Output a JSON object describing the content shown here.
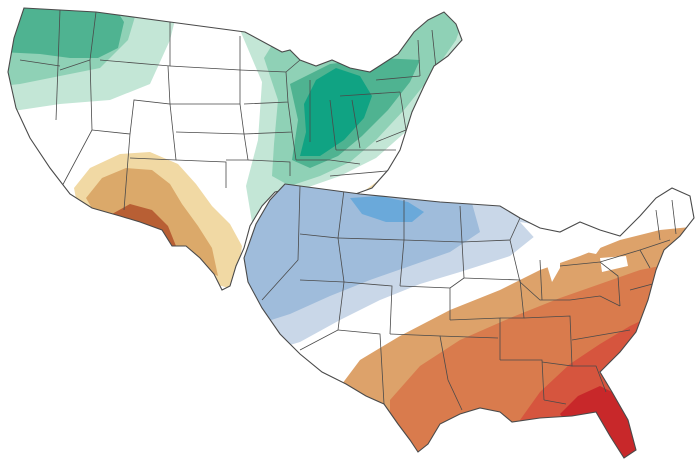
{
  "figure": {
    "maps": [
      {
        "id": "precipitation-outlook",
        "shaded_categories": [
          "above-normal-light",
          "above-normal-medium",
          "above-normal-strong",
          "below-normal-light",
          "below-normal-medium",
          "below-normal-strong"
        ]
      },
      {
        "id": "temperature-outlook",
        "shaded_categories": [
          "below-normal-light",
          "below-normal-medium",
          "below-normal-strong",
          "above-normal-light",
          "above-normal-medium",
          "above-normal-strong",
          "above-normal-extreme"
        ]
      }
    ],
    "colors": {
      "land": "#ffffff",
      "border": "#4a4a4a",
      "green_light": "#c3e6d6",
      "green_mid": "#8fd1b6",
      "green_strong": "#4fb391",
      "green_deep": "#10a383",
      "tan_light": "#f1d9a4",
      "tan_mid": "#dba96a",
      "brown": "#b85f34",
      "blue_light": "#c9d7e8",
      "blue_mid": "#9fbcdb",
      "blue_strong": "#6aa9da",
      "orange_light": "#dda26a",
      "orange_mid": "#d97b4d",
      "red_mid": "#d6553e",
      "red_strong": "#c8282a"
    }
  }
}
